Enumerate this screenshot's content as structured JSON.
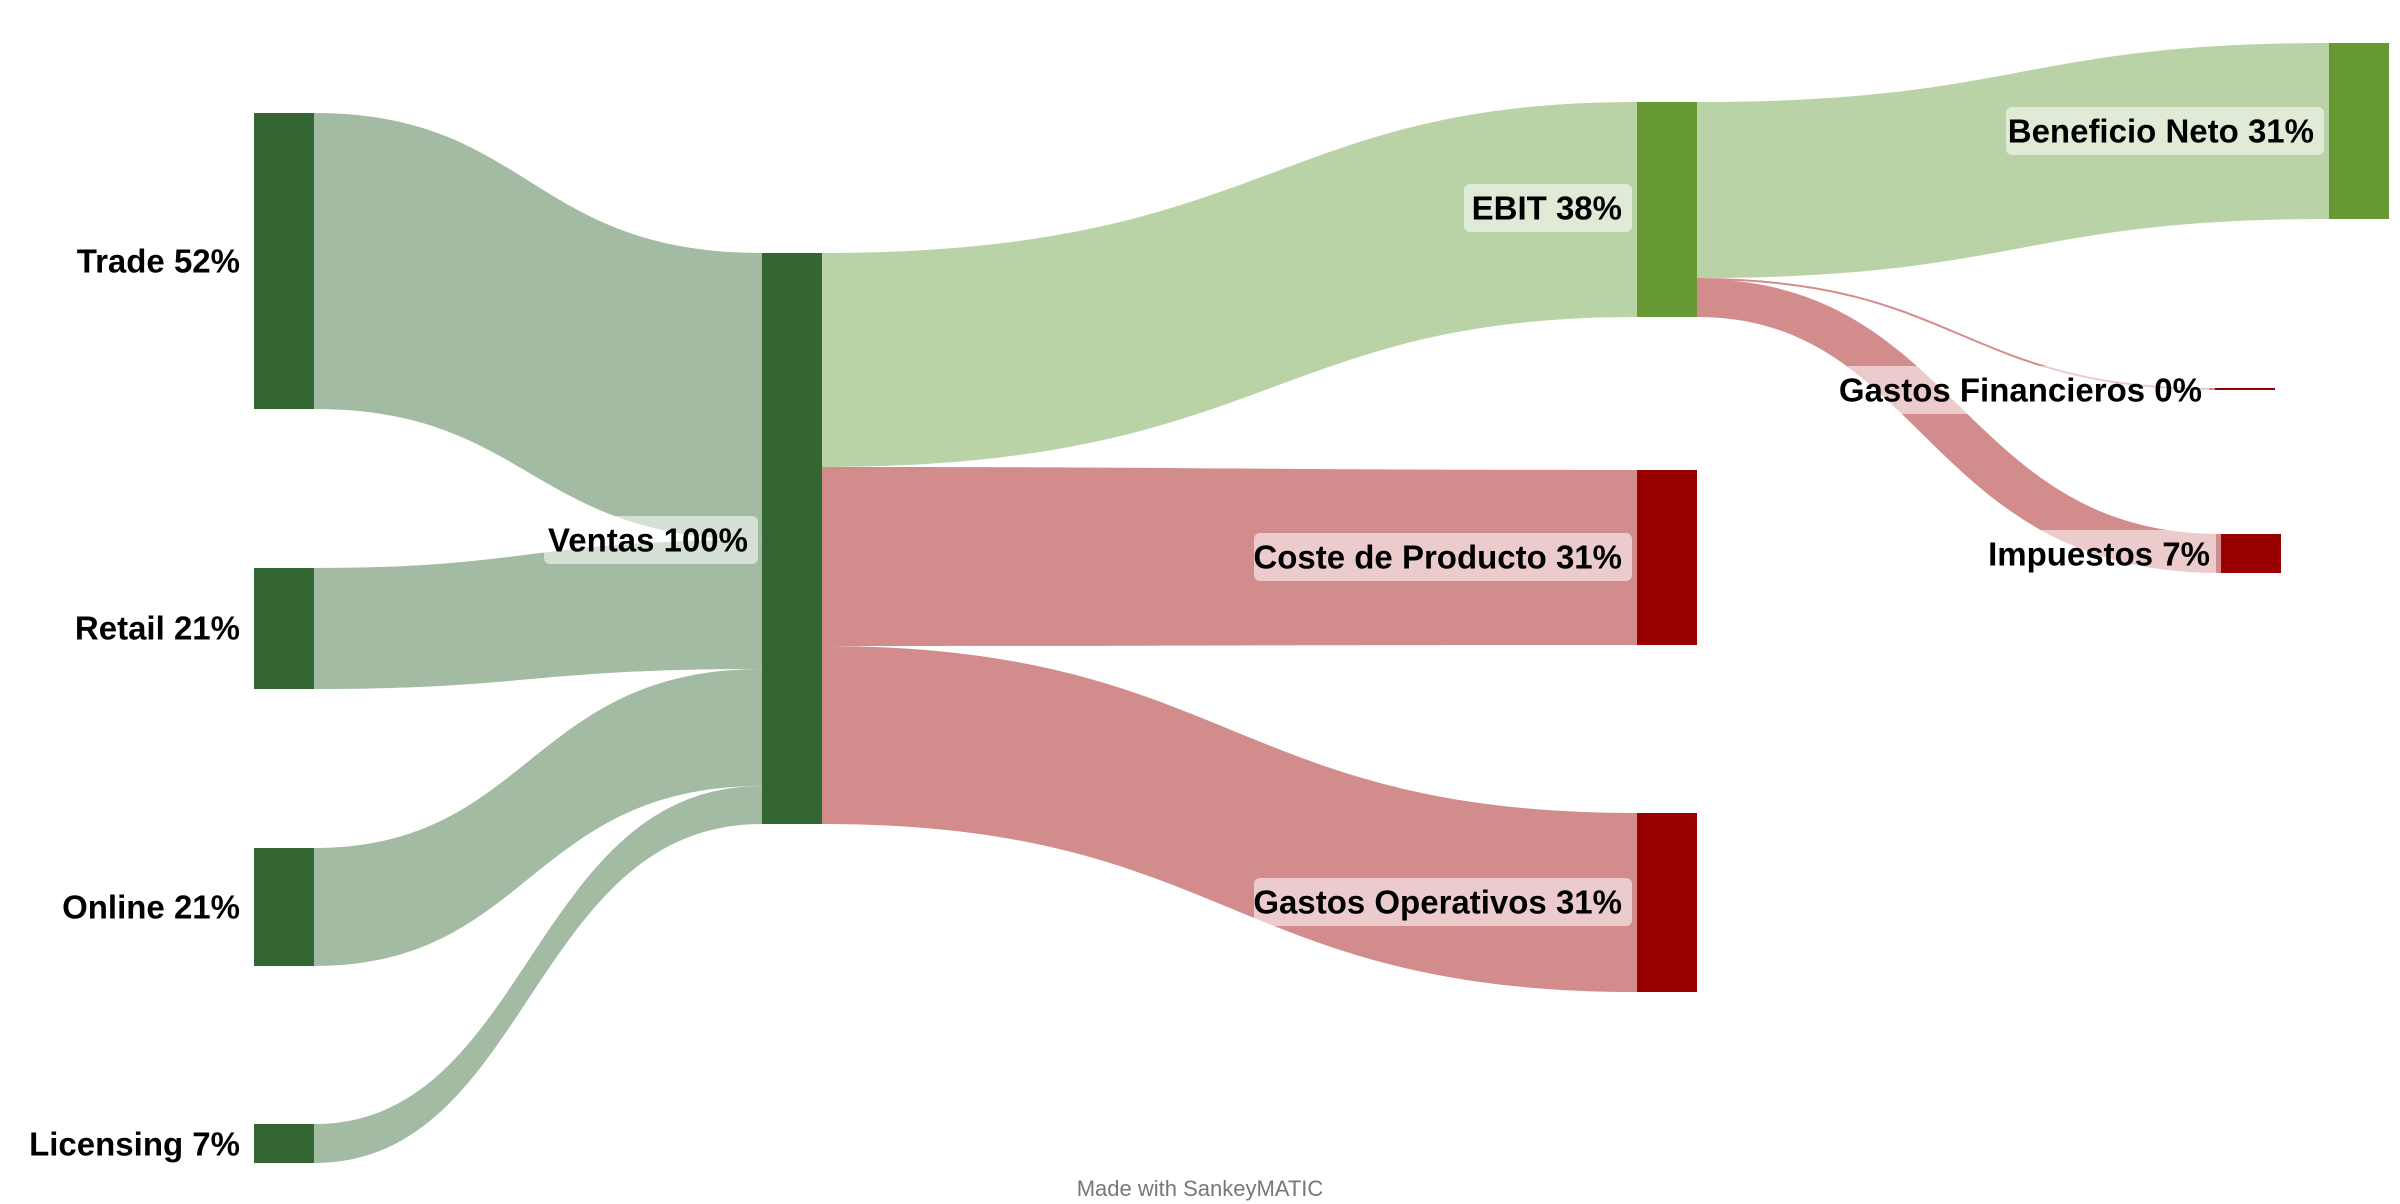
{
  "colors": {
    "income_node": "#336633",
    "income_flow": "#a3bba3",
    "profit_node": "#669933",
    "profit_flow": "#bad3a6",
    "cost_node": "#990000",
    "cost_flow": "#d28c8c",
    "label_bg": "#ffffff"
  },
  "nodes": {
    "trade": "Trade 52%",
    "retail": "Retail 21%",
    "online": "Online 21%",
    "licensing": "Licensing 7%",
    "ventas": "Ventas 100%",
    "ebit": "EBIT 38%",
    "coste": "Coste de Producto 31%",
    "gastos_op": "Gastos Operativos 31%",
    "beneficio": "Beneficio Neto 31%",
    "gastos_fin": "Gastos Financieros 0%",
    "impuestos": "Impuestos 7%"
  },
  "flows": [
    {
      "from": "Trade 52%",
      "to": "Ventas 100%",
      "value": 52
    },
    {
      "from": "Retail 21%",
      "to": "Ventas 100%",
      "value": 21
    },
    {
      "from": "Online 21%",
      "to": "Ventas 100%",
      "value": 21
    },
    {
      "from": "Licensing 7%",
      "to": "Ventas 100%",
      "value": 7
    },
    {
      "from": "Ventas 100%",
      "to": "EBIT 38%",
      "value": 38
    },
    {
      "from": "Ventas 100%",
      "to": "Coste de Producto 31%",
      "value": 31
    },
    {
      "from": "Ventas 100%",
      "to": "Gastos Operativos 31%",
      "value": 31
    },
    {
      "from": "EBIT 38%",
      "to": "Beneficio Neto 31%",
      "value": 31
    },
    {
      "from": "EBIT 38%",
      "to": "Gastos Financieros 0%",
      "value": 0
    },
    {
      "from": "EBIT 38%",
      "to": "Impuestos 7%",
      "value": 7
    }
  ],
  "footer": "Made with SankeyMATIC"
}
